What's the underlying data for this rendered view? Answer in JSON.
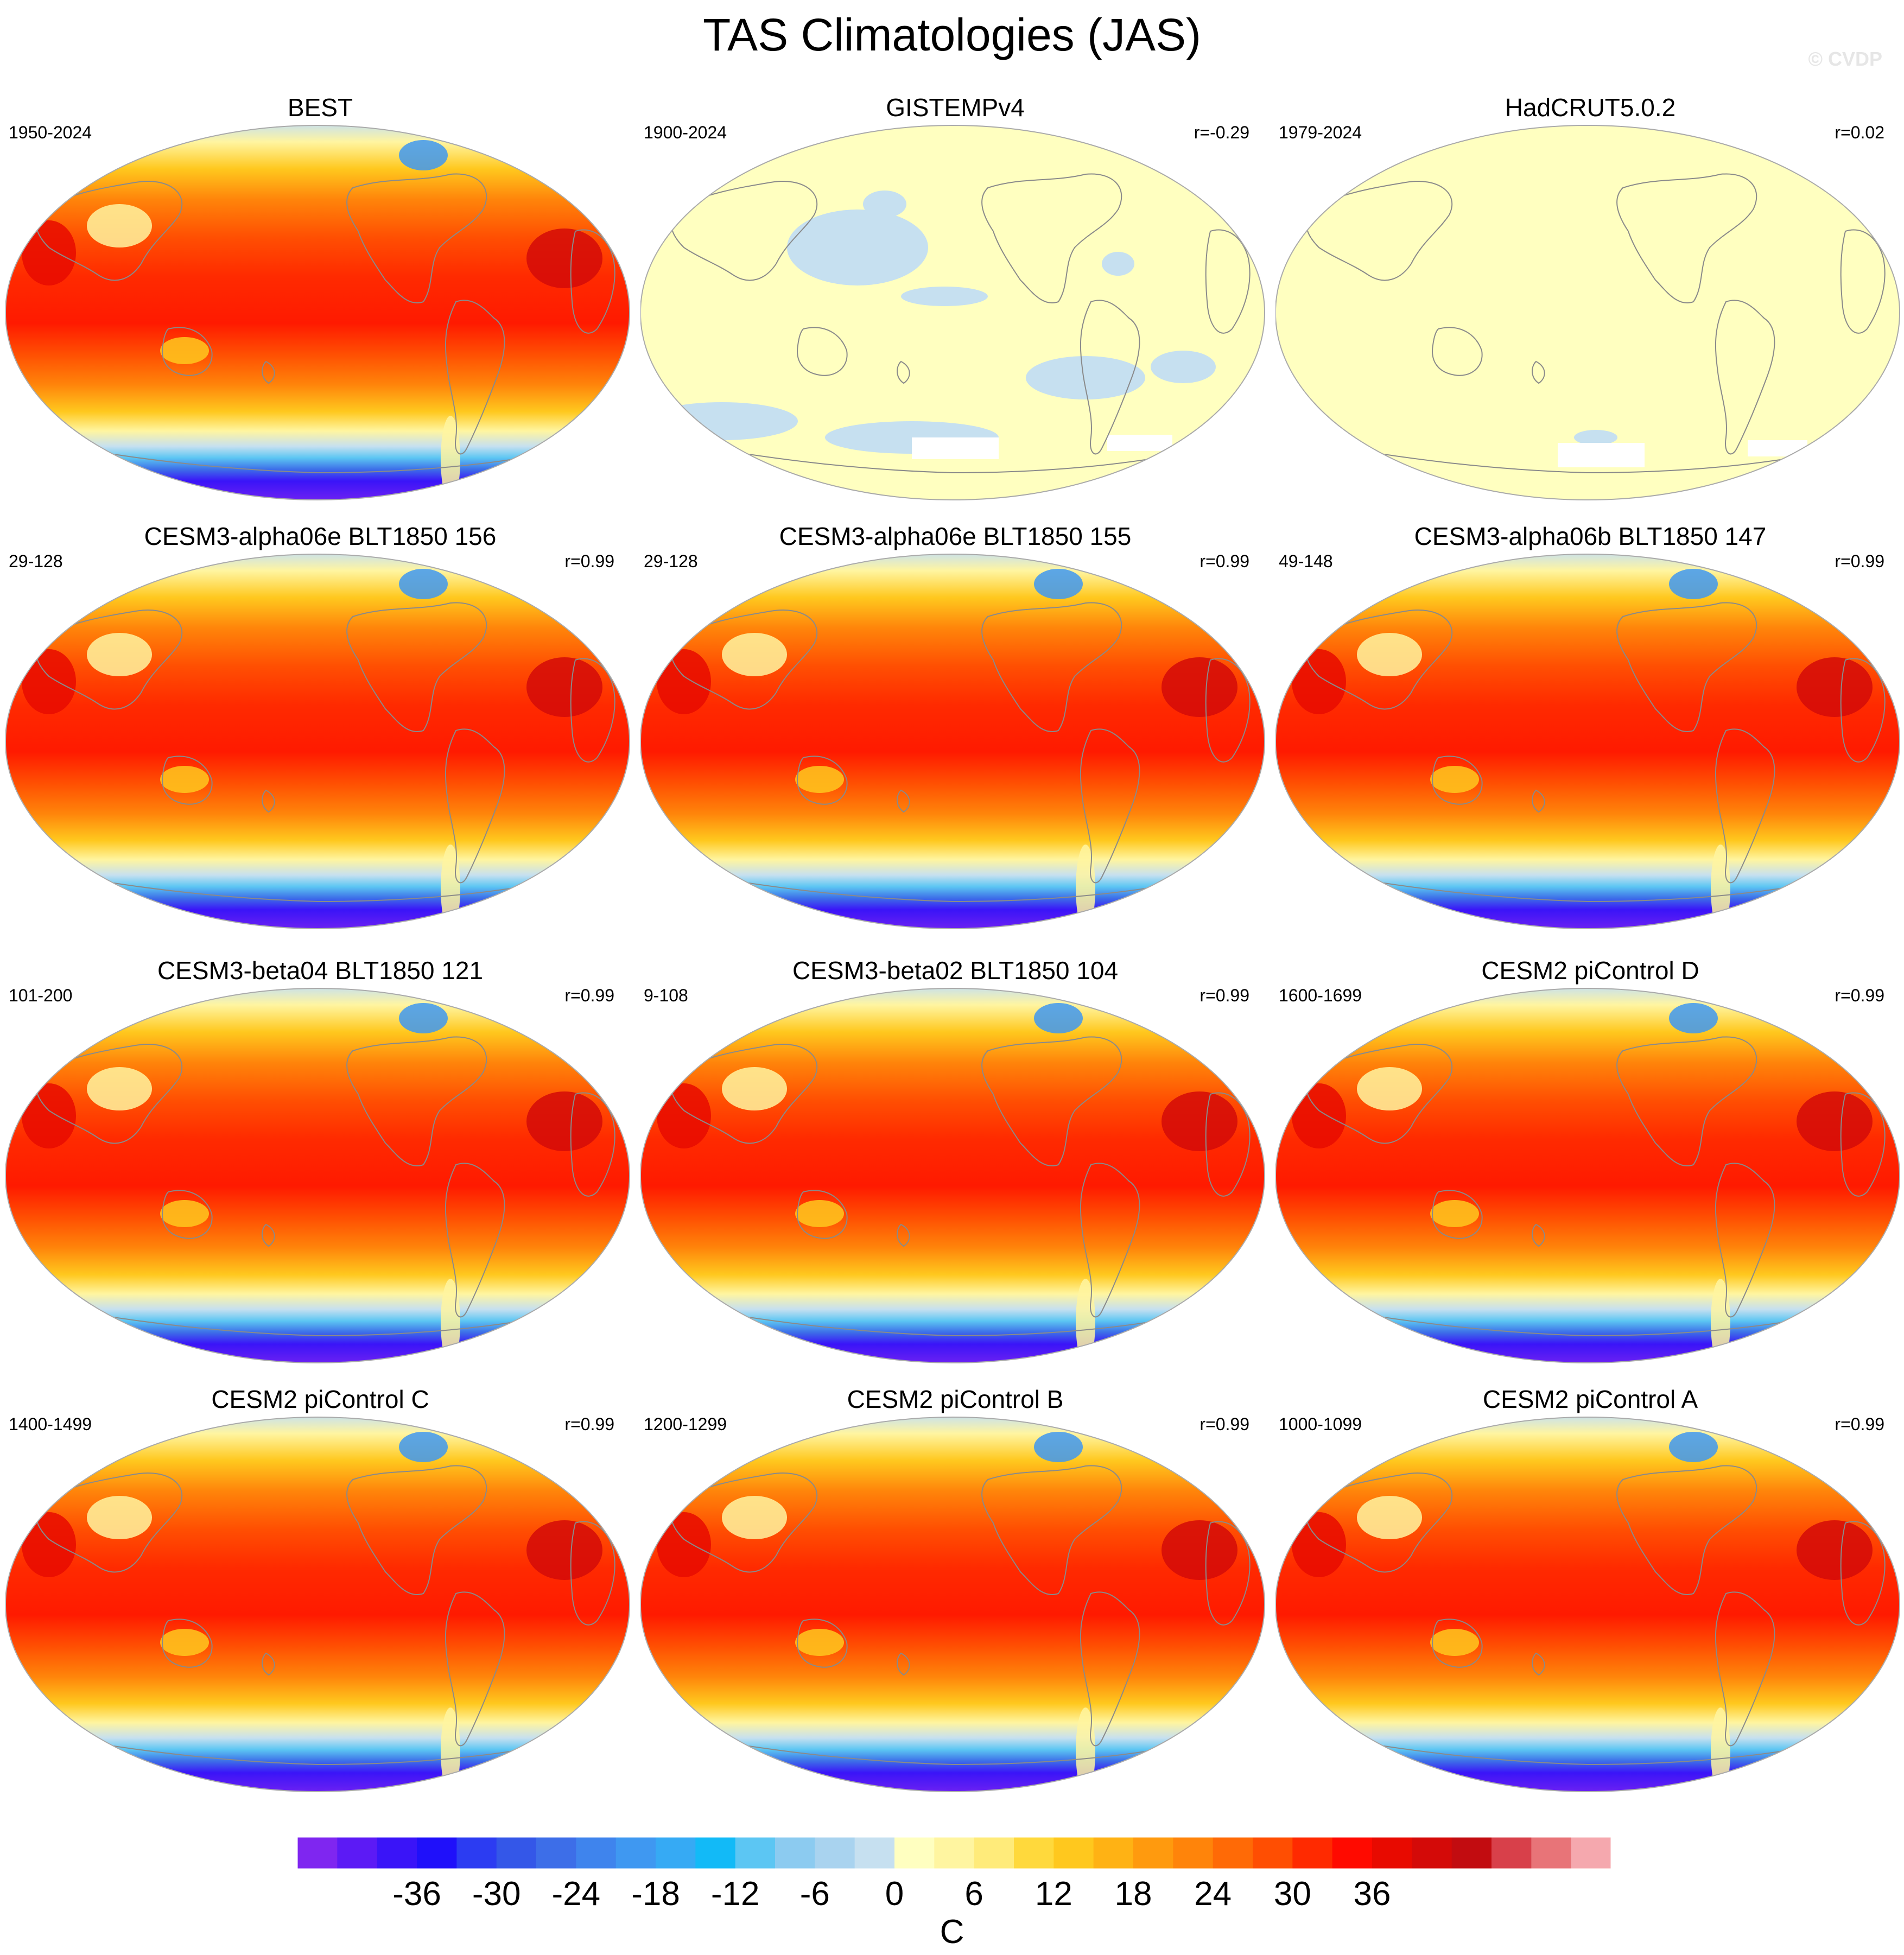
{
  "title": "TAS Climatologies (JAS)",
  "watermark": "© CVDP",
  "panels": [
    {
      "title": "BEST",
      "years": "1950-2024",
      "r": "",
      "style": "full"
    },
    {
      "title": "GISTEMPv4",
      "years": "1900-2024",
      "r": "r=-0.29",
      "style": "anomaly-blue"
    },
    {
      "title": "HadCRUT5.0.2",
      "years": "1979-2024",
      "r": "r=0.02",
      "style": "anomaly-flat"
    },
    {
      "title": "CESM3-alpha06e BLT1850 156",
      "years": "29-128",
      "r": "r=0.99",
      "style": "full"
    },
    {
      "title": "CESM3-alpha06e BLT1850 155",
      "years": "29-128",
      "r": "r=0.99",
      "style": "full"
    },
    {
      "title": "CESM3-alpha06b BLT1850 147",
      "years": "49-148",
      "r": "r=0.99",
      "style": "full"
    },
    {
      "title": "CESM3-beta04 BLT1850 121",
      "years": "101-200",
      "r": "r=0.99",
      "style": "full"
    },
    {
      "title": "CESM3-beta02 BLT1850 104",
      "years": "9-108",
      "r": "r=0.99",
      "style": "full"
    },
    {
      "title": "CESM2 piControl D",
      "years": "1600-1699",
      "r": "r=0.99",
      "style": "full"
    },
    {
      "title": "CESM2 piControl C",
      "years": "1400-1499",
      "r": "r=0.99",
      "style": "full"
    },
    {
      "title": "CESM2 piControl B",
      "years": "1200-1299",
      "r": "r=0.99",
      "style": "full"
    },
    {
      "title": "CESM2 piControl A",
      "years": "1000-1099",
      "r": "r=0.99",
      "style": "full"
    }
  ],
  "colorbar": {
    "unit": "C",
    "tick_labels": [
      "-36",
      "-30",
      "-24",
      "-18",
      "-12",
      "-6",
      "0",
      "6",
      "12",
      "18",
      "24",
      "30",
      "36"
    ],
    "colors": [
      "#7f26f0",
      "#5c1af5",
      "#3a14f8",
      "#1f10fa",
      "#2c3cf2",
      "#3457e8",
      "#3d6ee8",
      "#3f84ed",
      "#3f98f1",
      "#36aaf4",
      "#12baf7",
      "#5cc6f3",
      "#8ccbf0",
      "#a9d3ef",
      "#c6e0f0",
      "#ffffc0",
      "#fff5a0",
      "#ffeb7a",
      "#ffd93c",
      "#ffc81e",
      "#ffb214",
      "#ff9a0e",
      "#ff840a",
      "#ff6a06",
      "#ff4e02",
      "#ff2a00",
      "#ff0a00",
      "#e80a00",
      "#d40a08",
      "#c20c10",
      "#d8404a",
      "#e87478",
      "#f5a8ae"
    ]
  }
}
